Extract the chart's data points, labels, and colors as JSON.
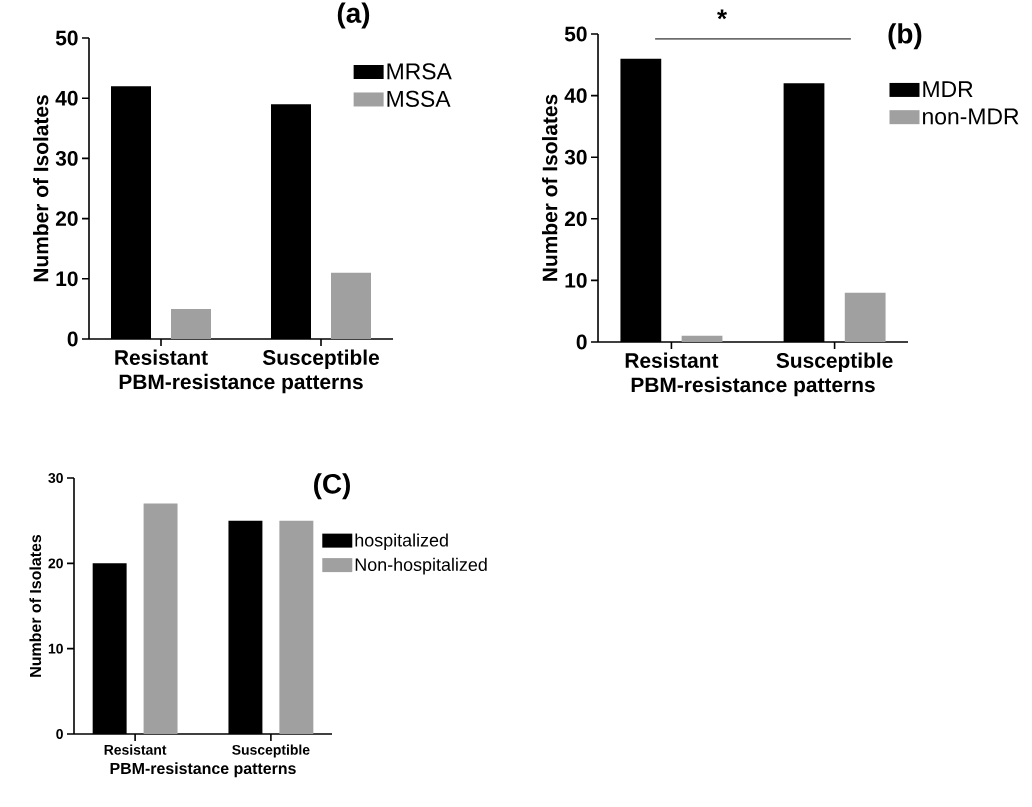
{
  "chart_data": [
    {
      "type": "bar",
      "title": "(a)",
      "categories": [
        "Resistant",
        "Susceptible"
      ],
      "xlabel": "PBM-resistance patterns",
      "ylabel": "Number of Isolates",
      "series": [
        {
          "name": "MRSA",
          "color": "#000000",
          "values": [
            42,
            39
          ]
        },
        {
          "name": "MSSA",
          "color": "#a0a0a0",
          "values": [
            5,
            11
          ]
        }
      ],
      "ylim": [
        0,
        50
      ],
      "yticks": [
        0,
        10,
        20,
        30,
        40,
        50
      ],
      "legend": "top right"
    },
    {
      "type": "bar",
      "title": "(b)",
      "categories": [
        "Resistant",
        "Susceptible"
      ],
      "xlabel": "PBM-resistance patterns",
      "ylabel": "Number of Isolates",
      "series": [
        {
          "name": "MDR",
          "color": "#000000",
          "values": [
            46,
            42
          ]
        },
        {
          "name": "non-MDR",
          "color": "#a0a0a0",
          "values": [
            1,
            8
          ]
        }
      ],
      "ylim": [
        0,
        50
      ],
      "yticks": [
        0,
        10,
        20,
        30,
        40,
        50
      ],
      "legend": "top right",
      "annotations": [
        "*"
      ]
    },
    {
      "type": "bar",
      "title": "(C)",
      "categories": [
        "Resistant",
        "Susceptible"
      ],
      "xlabel": "PBM-resistance patterns",
      "ylabel": "Number of Isolates",
      "series": [
        {
          "name": "hospitalized",
          "color": "#000000",
          "values": [
            20,
            25
          ]
        },
        {
          "name": "Non-hospitalized",
          "color": "#a0a0a0",
          "values": [
            27,
            25
          ]
        }
      ],
      "ylim": [
        0,
        30
      ],
      "yticks": [
        0,
        10,
        20,
        30
      ],
      "legend": "right"
    }
  ]
}
